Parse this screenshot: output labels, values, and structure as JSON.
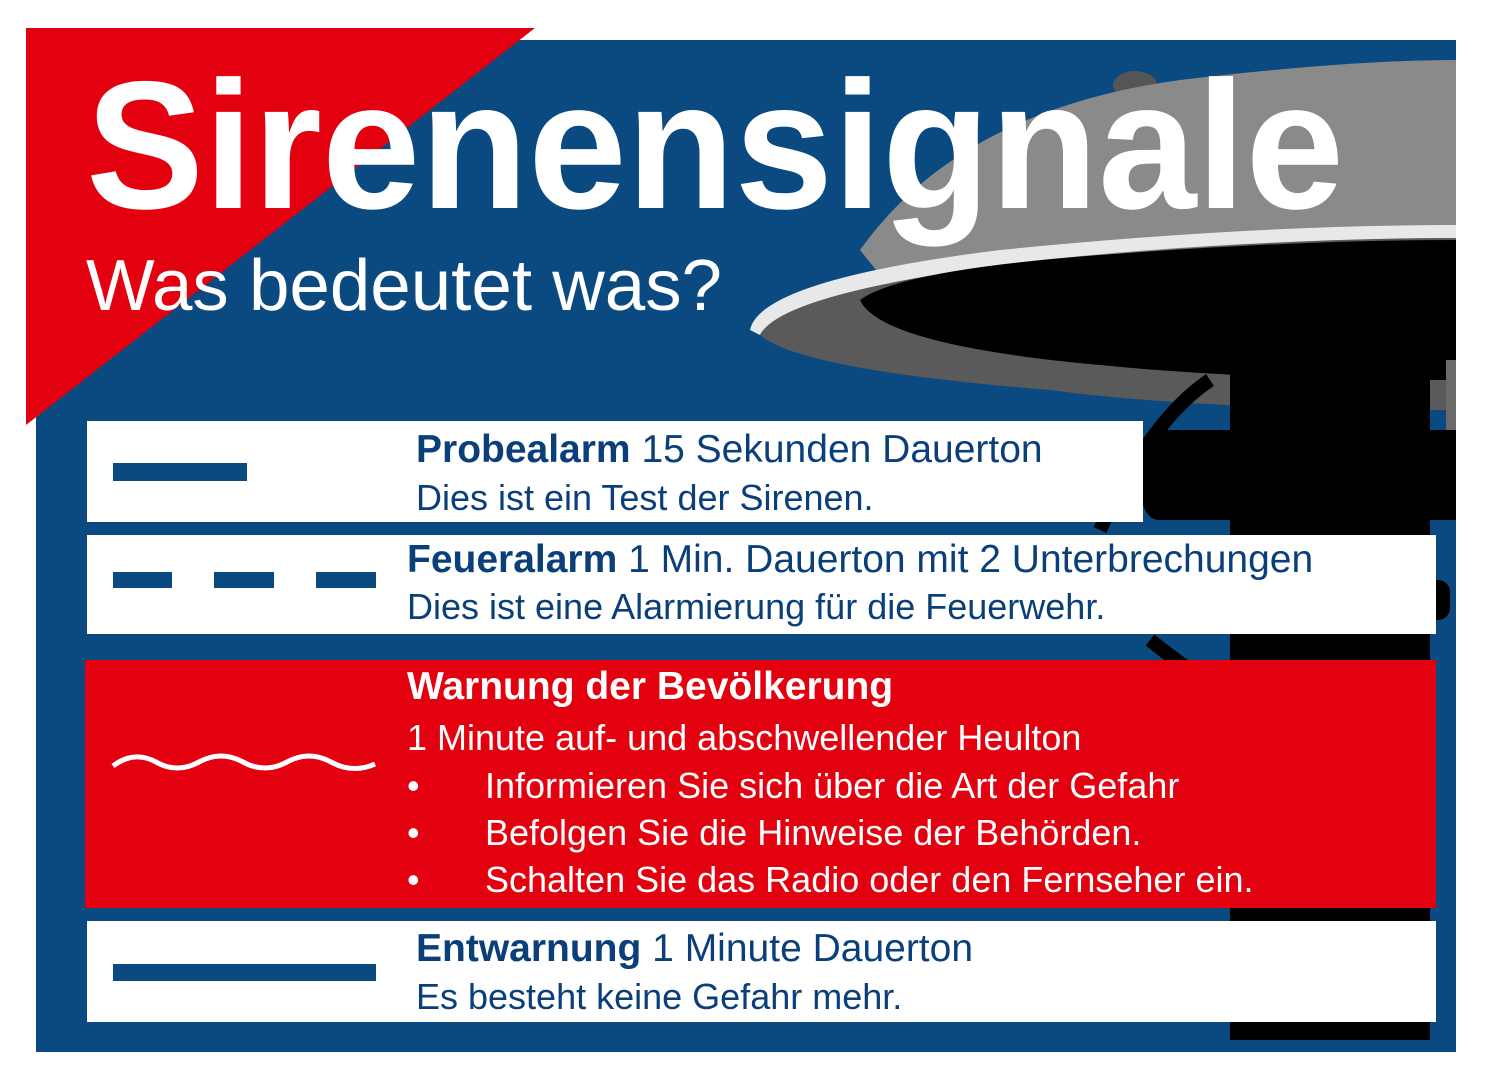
{
  "title": "Sirenensignale",
  "subtitle": "Was bedeutet was?",
  "colors": {
    "blue": "#0b4a80",
    "red": "#e3000f",
    "text_blue": "#0b3f7a",
    "white": "#ffffff"
  },
  "signals": [
    {
      "symbol": "solid-short-line-icon",
      "name": "Probealarm",
      "duration": "15 Sekunden Dauerton",
      "description": "Dies ist ein Test der Sirenen."
    },
    {
      "symbol": "dashed-line-icon",
      "name": "Feueralarm",
      "duration": "1 Min. Dauerton mit 2 Unterbrechungen",
      "description": "Dies ist eine Alarmierung für die Feuerwehr."
    },
    {
      "symbol": "wave-line-icon",
      "name": "Warnung der Bevölkerung",
      "duration": "1 Minute auf- und abschwellender Heulton",
      "bullets": [
        "Informieren Sie sich über die Art der Gefahr",
        "Befolgen Sie die Hinweise der Behörden.",
        "Schalten Sie das Radio oder den Fernseher ein."
      ]
    },
    {
      "symbol": "solid-long-line-icon",
      "name": "Entwarnung",
      "duration": "1 Minute Dauerton",
      "description": "Es besteht keine Gefahr mehr."
    }
  ]
}
